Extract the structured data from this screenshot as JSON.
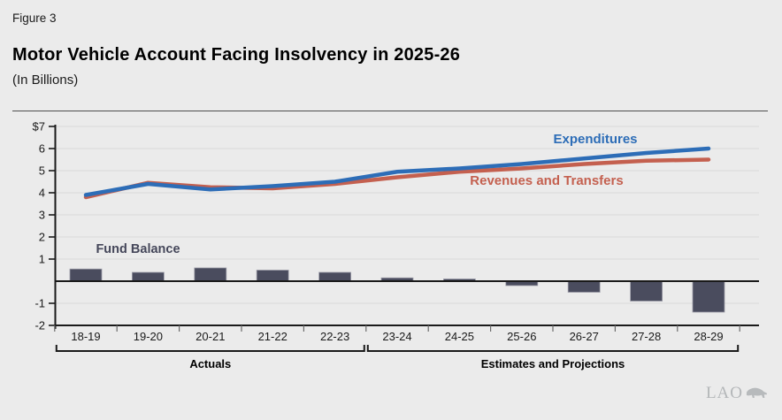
{
  "header": {
    "figure_label": "Figure 3",
    "title": "Motor Vehicle Account Facing Insolvency in 2025-26",
    "subtitle": "(In Billions)"
  },
  "footer": {
    "logo_text": "LAO",
    "logo_icon": "bear-icon"
  },
  "colors": {
    "background": "#ebebeb",
    "gridline": "#dcdcdc",
    "axis": "#1a1a1a",
    "expenditures": "#2d6db7",
    "revenues": "#c4604f",
    "fund_balance_bar": "#4a4c5e",
    "fund_balance_label": "#45475a",
    "logo": "#b3b6b8"
  },
  "chart_data": {
    "type": "bar",
    "subtype": "combo-line-bar",
    "title": "Motor Vehicle Account Facing Insolvency in 2025-26",
    "units": "In Billions",
    "categories": [
      "18-19",
      "19-20",
      "20-21",
      "21-22",
      "22-23",
      "23-24",
      "24-25",
      "25-26",
      "26-27",
      "27-28",
      "28-29"
    ],
    "series": [
      {
        "name": "Expenditures",
        "type": "line",
        "color": "#2d6db7",
        "values": [
          3.9,
          4.4,
          4.15,
          4.3,
          4.5,
          4.95,
          5.1,
          5.3,
          5.55,
          5.8,
          6.0
        ]
      },
      {
        "name": "Revenues and Transfers",
        "type": "line",
        "color": "#c4604f",
        "values": [
          3.8,
          4.45,
          4.25,
          4.2,
          4.4,
          4.7,
          4.95,
          5.1,
          5.3,
          5.45,
          5.5
        ]
      },
      {
        "name": "Fund Balance",
        "type": "bar",
        "color": "#4a4c5e",
        "values": [
          0.55,
          0.4,
          0.6,
          0.5,
          0.4,
          0.15,
          0.1,
          -0.2,
          -0.5,
          -0.9,
          -1.4
        ]
      }
    ],
    "ylim": [
      -2,
      7
    ],
    "y_ticks": [
      {
        "value": 7,
        "label": "$7"
      },
      {
        "value": 6,
        "label": "6"
      },
      {
        "value": 5,
        "label": "5"
      },
      {
        "value": 4,
        "label": "4"
      },
      {
        "value": 3,
        "label": "3"
      },
      {
        "value": 2,
        "label": "2"
      },
      {
        "value": 1,
        "label": "1"
      },
      {
        "value": -1,
        "label": "-1"
      },
      {
        "value": -2,
        "label": "-2"
      }
    ],
    "grid": true,
    "legend_position": "inline-annotations",
    "x_groups": [
      {
        "label": "Actuals",
        "from_index": 0,
        "to_index": 4
      },
      {
        "label": "Estimates and Projections",
        "from_index": 5,
        "to_index": 10
      }
    ]
  }
}
